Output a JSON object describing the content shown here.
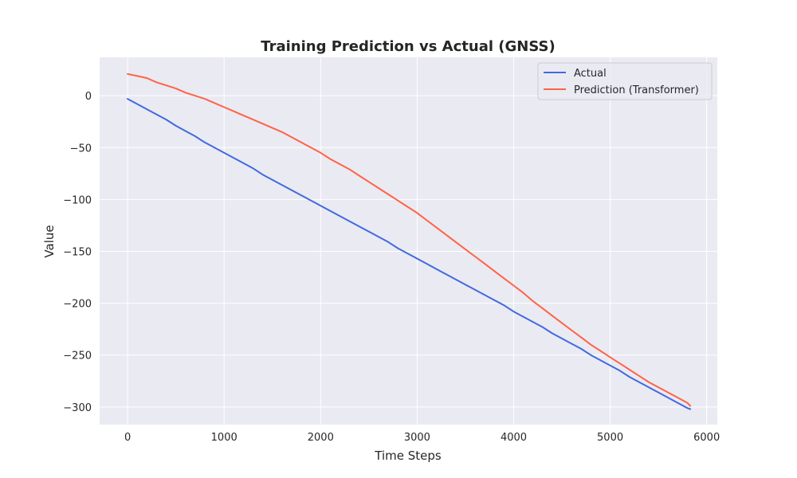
{
  "chart_data": {
    "type": "line",
    "title": "Training Prediction vs Actual (GNSS)",
    "xlabel": "Time Steps",
    "ylabel": "Value",
    "xlim": [
      -290,
      6110
    ],
    "ylim": [
      -317,
      37
    ],
    "xticks": [
      0,
      1000,
      2000,
      3000,
      4000,
      5000,
      6000
    ],
    "yticks": [
      0,
      -50,
      -100,
      -150,
      -200,
      -250,
      -300
    ],
    "grid": true,
    "legend_position": "top-right",
    "series": [
      {
        "name": "Actual",
        "color": "#4169e1",
        "x": [
          0,
          100,
          200,
          300,
          400,
          500,
          600,
          700,
          800,
          900,
          1000,
          1100,
          1200,
          1300,
          1400,
          1500,
          1600,
          1700,
          1800,
          1900,
          2000,
          2100,
          2200,
          2300,
          2400,
          2500,
          2600,
          2700,
          2800,
          2900,
          3000,
          3100,
          3200,
          3300,
          3400,
          3500,
          3600,
          3700,
          3800,
          3900,
          4000,
          4100,
          4200,
          4300,
          4400,
          4500,
          4600,
          4700,
          4800,
          4900,
          5000,
          5100,
          5200,
          5300,
          5400,
          5500,
          5600,
          5700,
          5800,
          5830
        ],
        "y": [
          -3,
          -8,
          -13,
          -18,
          -23,
          -29,
          -34,
          -39,
          -45,
          -50,
          -55,
          -60,
          -65,
          -70,
          -76,
          -81,
          -86,
          -91,
          -96,
          -101,
          -106,
          -111,
          -116,
          -121,
          -126,
          -131,
          -136,
          -141,
          -147,
          -152,
          -157,
          -162,
          -167,
          -172,
          -177,
          -182,
          -187,
          -192,
          -197,
          -202,
          -208,
          -213,
          -218,
          -223,
          -229,
          -234,
          -239,
          -244,
          -250,
          -255,
          -260,
          -265,
          -271,
          -276,
          -281,
          -286,
          -291,
          -296,
          -301,
          -302
        ]
      },
      {
        "name": "Prediction (Transformer)",
        "color": "#ff6347",
        "x": [
          0,
          100,
          200,
          300,
          400,
          500,
          600,
          700,
          800,
          900,
          1000,
          1100,
          1200,
          1300,
          1400,
          1500,
          1600,
          1700,
          1800,
          1900,
          2000,
          2100,
          2200,
          2300,
          2400,
          2500,
          2600,
          2700,
          2800,
          2900,
          3000,
          3100,
          3200,
          3300,
          3400,
          3500,
          3600,
          3700,
          3800,
          3900,
          4000,
          4100,
          4200,
          4300,
          4400,
          4500,
          4600,
          4700,
          4800,
          4900,
          5000,
          5100,
          5200,
          5300,
          5400,
          5500,
          5600,
          5700,
          5800,
          5830
        ],
        "y": [
          21,
          19,
          17,
          13,
          10,
          7,
          3,
          0,
          -3,
          -7,
          -11,
          -15,
          -19,
          -23,
          -27,
          -31,
          -35,
          -40,
          -45,
          -50,
          -55,
          -61,
          -66,
          -71,
          -77,
          -83,
          -89,
          -95,
          -101,
          -107,
          -113,
          -120,
          -127,
          -134,
          -141,
          -148,
          -155,
          -162,
          -169,
          -176,
          -183,
          -190,
          -198,
          -205,
          -212,
          -219,
          -226,
          -233,
          -240,
          -246,
          -252,
          -258,
          -264,
          -270,
          -276,
          -281,
          -286,
          -291,
          -296,
          -299
        ]
      }
    ]
  }
}
